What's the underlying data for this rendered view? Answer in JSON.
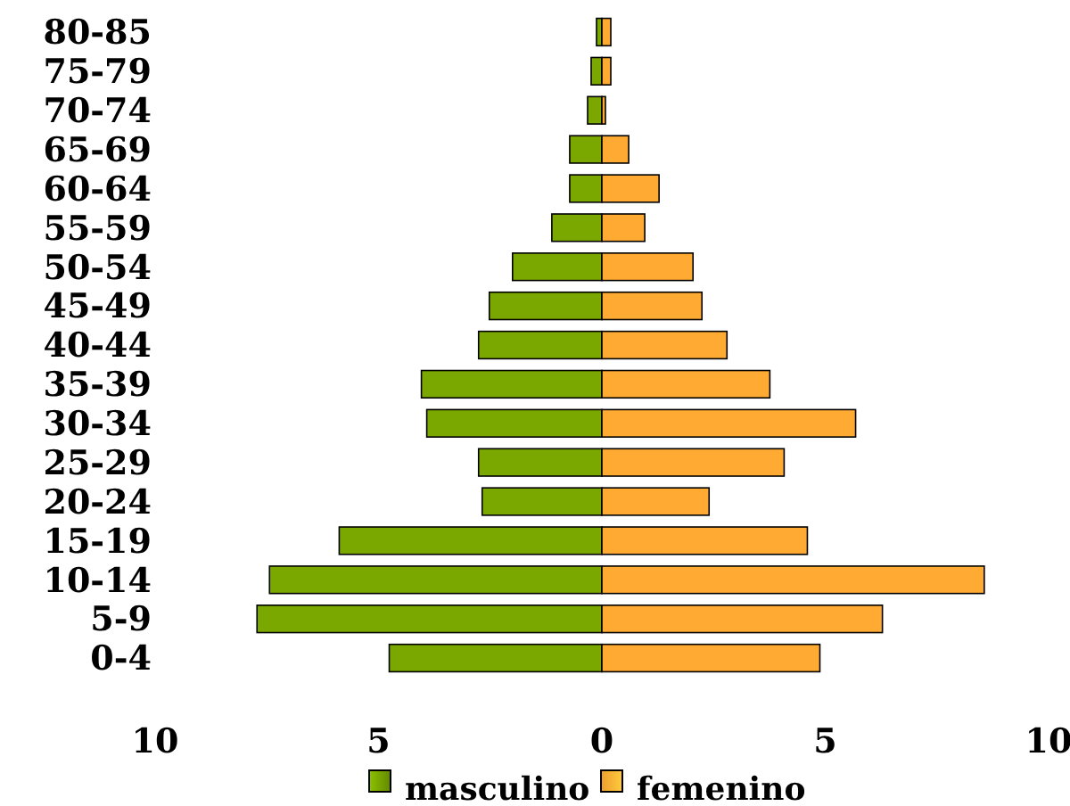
{
  "chart_data": {
    "type": "bar",
    "orientation": "horizontal",
    "categories": [
      "80-85",
      "75-79",
      "70-74",
      "65-69",
      "60-64",
      "55-59",
      "50-54",
      "45-49",
      "40-44",
      "35-39",
      "30-34",
      "25-29",
      "20-24",
      "15-19",
      "10-14",
      "5-9",
      "0-4"
    ],
    "series": [
      {
        "name": "masculino",
        "color": "#7aa800",
        "values": [
          -0.12,
          -0.24,
          -0.32,
          -0.72,
          -0.72,
          -1.12,
          -2.0,
          -2.52,
          -2.76,
          -4.04,
          -3.92,
          -2.76,
          -2.68,
          -5.88,
          -7.44,
          -7.72,
          -4.76
        ]
      },
      {
        "name": "femenino",
        "color": "#ffaa33",
        "values": [
          0.2,
          0.2,
          0.08,
          0.6,
          1.28,
          0.96,
          2.04,
          2.24,
          2.8,
          3.76,
          5.68,
          4.08,
          2.4,
          4.6,
          8.56,
          6.28,
          4.88
        ]
      }
    ],
    "xlim": [
      -10,
      10
    ],
    "xticks": [
      {
        "value": -10,
        "label": "10"
      },
      {
        "value": -5,
        "label": "5"
      },
      0,
      5,
      10
    ],
    "stacked": true,
    "legend": "bottom"
  }
}
